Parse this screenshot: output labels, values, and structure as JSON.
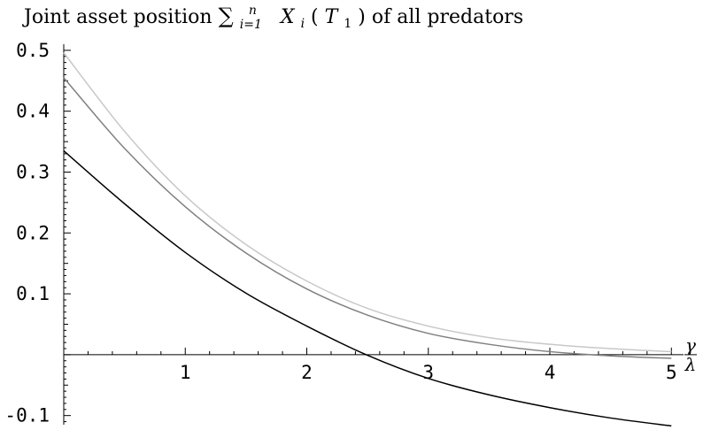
{
  "chart_data": {
    "type": "line",
    "title": {
      "prefix": "Joint asset position ",
      "sum": "∑",
      "sum_upper": "n",
      "sum_lower": "i=1",
      "var": "X",
      "var_sub": "i",
      "open": "(",
      "arg": "T",
      "arg_sub": "1",
      "close": ")",
      "suffix": " of all predators"
    },
    "xlabel": {
      "numerator": "γ",
      "denominator": "λ"
    },
    "ylabel": "",
    "xlim": [
      0,
      5.1
    ],
    "ylim": [
      -0.115,
      0.51
    ],
    "x_ticks": [
      {
        "value": 1,
        "label": "1"
      },
      {
        "value": 2,
        "label": "2"
      },
      {
        "value": 3,
        "label": "3"
      },
      {
        "value": 4,
        "label": "4"
      },
      {
        "value": 5,
        "label": "5"
      }
    ],
    "y_ticks": [
      {
        "value": -0.1,
        "label": "-0.1"
      },
      {
        "value": 0.1,
        "label": "0.1"
      },
      {
        "value": 0.2,
        "label": "0.2"
      },
      {
        "value": 0.3,
        "label": "0.3"
      },
      {
        "value": 0.4,
        "label": "0.4"
      },
      {
        "value": 0.5,
        "label": "0.5"
      }
    ],
    "grid": false,
    "legend": "none",
    "series": [
      {
        "color": "#c8c8c8",
        "x": [
          0,
          0.5,
          1,
          1.5,
          2,
          2.5,
          3,
          3.5,
          4,
          4.5,
          5
        ],
        "y": [
          0.496,
          0.367,
          0.261,
          0.181,
          0.121,
          0.076,
          0.047,
          0.028,
          0.017,
          0.01,
          0.005
        ]
      },
      {
        "color": "#808080",
        "x": [
          0,
          0.5,
          1,
          1.5,
          2,
          2.5,
          3,
          3.5,
          4,
          4.5,
          5
        ],
        "y": [
          0.455,
          0.339,
          0.243,
          0.167,
          0.108,
          0.065,
          0.035,
          0.017,
          0.005,
          -0.002,
          -0.006
        ]
      },
      {
        "color": "#000000",
        "x": [
          0,
          0.5,
          1,
          1.5,
          2,
          2.5,
          3,
          3.5,
          4,
          4.5,
          5
        ],
        "y": [
          0.335,
          0.248,
          0.168,
          0.101,
          0.047,
          -0.001,
          -0.039,
          -0.066,
          -0.087,
          -0.104,
          -0.117
        ]
      }
    ]
  }
}
